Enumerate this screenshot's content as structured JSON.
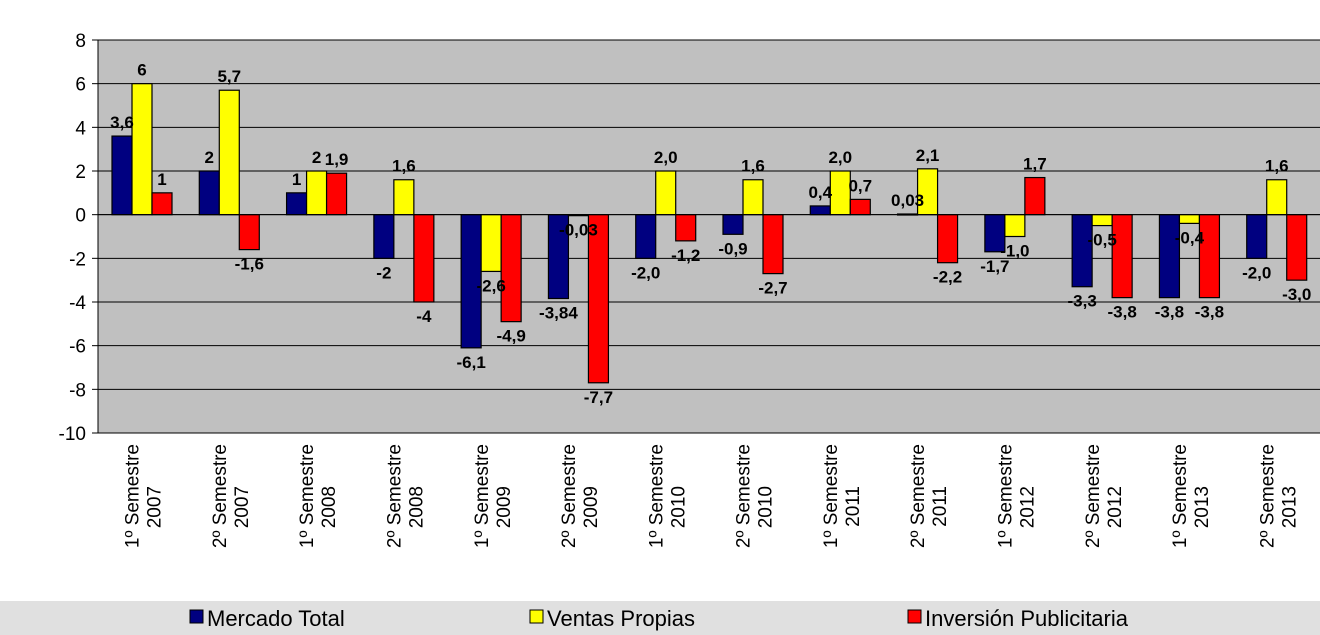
{
  "chart_data": {
    "type": "bar",
    "categories": [
      [
        "1º Semestre",
        "2007"
      ],
      [
        "2º Semestre",
        "2007"
      ],
      [
        "1º Semestre",
        "2008"
      ],
      [
        "2º Semestre",
        "2008"
      ],
      [
        "1º Semestre",
        "2009"
      ],
      [
        "2º Semestre",
        "2009"
      ],
      [
        "1º Semestre",
        "2010"
      ],
      [
        "2º Semestre",
        "2010"
      ],
      [
        "1º Semestre",
        "2011"
      ],
      [
        "2º Semestre",
        "2011"
      ],
      [
        "1º Semestre",
        "2012"
      ],
      [
        "2º Semestre",
        "2012"
      ],
      [
        "1º Semestre",
        "2013"
      ],
      [
        "2º Semestre",
        "2013"
      ]
    ],
    "series": [
      {
        "name": "Mercado Total",
        "color": "#000080",
        "values": [
          3.6,
          2,
          1,
          -2,
          -6.1,
          -3.84,
          -2.0,
          -0.9,
          0.4,
          0.03,
          -1.7,
          -3.3,
          -3.8,
          -2.0
        ],
        "labels": [
          "3,6",
          "2",
          "1",
          "-2",
          "-6,1",
          "-3,84",
          "-2,0",
          "-0,9",
          "0,4",
          "0,03",
          "-1,7",
          "-3,3",
          "-3,8",
          "-2,0"
        ]
      },
      {
        "name": "Ventas Propias",
        "color": "#FFFF00",
        "values": [
          6,
          5.7,
          2,
          1.6,
          -2.6,
          -0.03,
          2.0,
          1.6,
          2.0,
          2.1,
          -1.0,
          -0.5,
          -0.4,
          1.6
        ],
        "labels": [
          "6",
          "5,7",
          "2",
          "1,6",
          "-2,6",
          "-0,03",
          "2,0",
          "1,6",
          "2,0",
          "2,1",
          "-1,0",
          "-0,5",
          "-0,4",
          "1,6"
        ]
      },
      {
        "name": "Inversión Publicitaria",
        "color": "#FF0000",
        "values": [
          1,
          -1.6,
          1.9,
          -4,
          -4.9,
          -7.7,
          -1.2,
          -2.7,
          0.7,
          -2.2,
          1.7,
          -3.8,
          -3.8,
          -3.0
        ],
        "labels": [
          "1",
          "-1,6",
          "1,9",
          "-4",
          "-4,9",
          "-7,7",
          "-1,2",
          "-2,7",
          "0,7",
          "-2,2",
          "1,7",
          "-3,8",
          "-3,8",
          "-3,0"
        ]
      }
    ],
    "ylim": [
      -10,
      8
    ],
    "yticks": [
      8,
      6,
      4,
      2,
      0,
      -2,
      -4,
      -6,
      -8,
      -10
    ],
    "grid": true,
    "legend": "bottom",
    "plot_background": "#C0C0C0",
    "legend_background": "#E0E0E0"
  }
}
